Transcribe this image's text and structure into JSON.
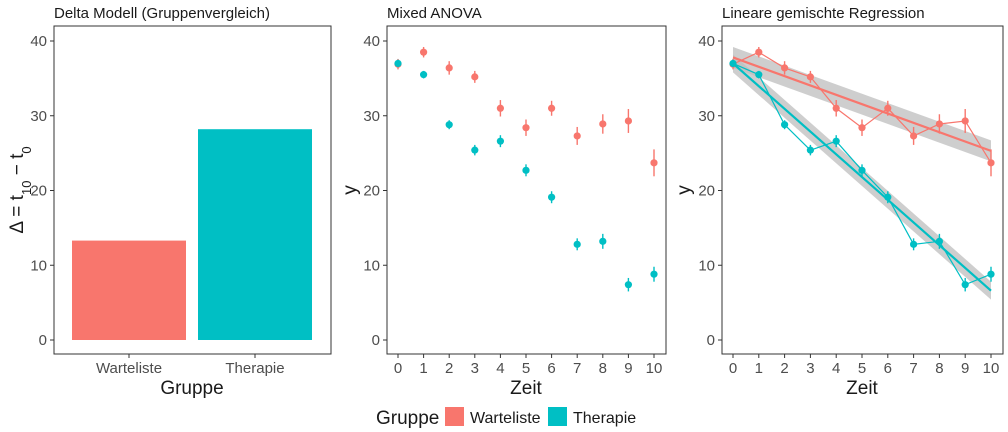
{
  "legend": {
    "title": "Gruppe",
    "items": [
      {
        "label": "Warteliste",
        "color": "#F8766D"
      },
      {
        "label": "Therapie",
        "color": "#00BFC4"
      }
    ]
  },
  "chart_data": [
    {
      "type": "bar",
      "title": "Delta Modell (Gruppenvergleich)",
      "xlabel": "Gruppe",
      "ylabel": "Δ = t10 − t0",
      "ylim": [
        0,
        40
      ],
      "yticks": [
        "0",
        "10",
        "20",
        "30",
        "40"
      ],
      "categories": [
        "Warteliste",
        "Therapie"
      ],
      "values": [
        13.3,
        28.2
      ],
      "colors": [
        "#F8766D",
        "#00BFC4"
      ],
      "grid": false
    },
    {
      "type": "scatter",
      "title": "Mixed ANOVA",
      "xlabel": "Zeit",
      "ylabel": "y",
      "ylim": [
        0,
        40
      ],
      "yticks": [
        "0",
        "10",
        "20",
        "30",
        "40"
      ],
      "x": [
        0,
        1,
        2,
        3,
        4,
        5,
        6,
        7,
        8,
        9,
        10
      ],
      "series": [
        {
          "name": "Warteliste",
          "color": "#F8766D",
          "values": [
            36.9,
            38.5,
            36.4,
            35.2,
            31.0,
            28.4,
            31.0,
            27.3,
            28.9,
            29.3,
            23.7
          ],
          "err": [
            0.7,
            0.7,
            0.9,
            0.8,
            1.1,
            1.1,
            1.0,
            1.2,
            1.3,
            1.6,
            1.8
          ]
        },
        {
          "name": "Therapie",
          "color": "#00BFC4",
          "values": [
            37.0,
            35.5,
            28.8,
            25.4,
            26.6,
            22.7,
            19.1,
            12.8,
            13.2,
            7.4,
            8.8
          ],
          "err": [
            0.5,
            0.5,
            0.6,
            0.7,
            0.8,
            0.8,
            0.8,
            0.8,
            1.0,
            0.9,
            1.0
          ]
        }
      ],
      "grid": false
    },
    {
      "type": "line",
      "title": "Lineare gemischte Regression",
      "xlabel": "Zeit",
      "ylabel": "y",
      "ylim": [
        0,
        40
      ],
      "yticks": [
        "0",
        "10",
        "20",
        "30",
        "40"
      ],
      "x": [
        0,
        1,
        2,
        3,
        4,
        5,
        6,
        7,
        8,
        9,
        10
      ],
      "series": [
        {
          "name": "Warteliste",
          "color": "#F8766D",
          "values": [
            36.9,
            38.5,
            36.4,
            35.2,
            31.0,
            28.4,
            31.0,
            27.3,
            28.9,
            29.3,
            23.7
          ],
          "err": [
            0.7,
            0.7,
            0.9,
            0.8,
            1.1,
            1.1,
            1.0,
            1.2,
            1.3,
            1.6,
            1.8
          ],
          "fit": {
            "start": 37.8,
            "end": 25.3,
            "ci_start": 1.4,
            "ci_end": 1.4
          }
        },
        {
          "name": "Therapie",
          "color": "#00BFC4",
          "values": [
            37.0,
            35.5,
            28.8,
            25.4,
            26.6,
            22.7,
            19.1,
            12.8,
            13.2,
            7.4,
            8.8
          ],
          "err": [
            0.5,
            0.5,
            0.6,
            0.7,
            0.8,
            0.8,
            0.8,
            0.8,
            1.0,
            0.9,
            1.0
          ],
          "fit": {
            "start": 37.0,
            "end": 6.6,
            "ci_start": 1.2,
            "ci_end": 1.2
          }
        }
      ],
      "ci_color": "#BEBEBE",
      "grid": false
    }
  ]
}
